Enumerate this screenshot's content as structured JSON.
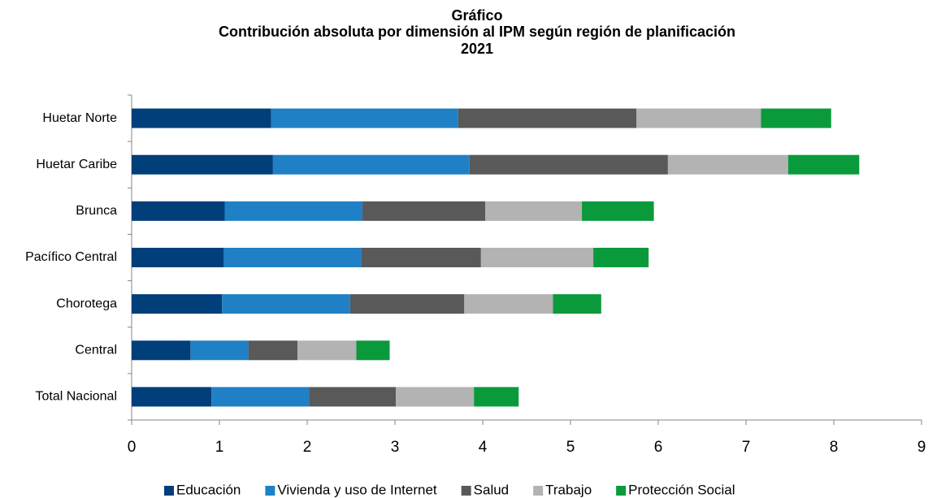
{
  "chart_data": {
    "type": "stacked_barh",
    "title_lines": [
      "Gráfico",
      "Contribución absoluta por dimensión al IPM según región de planificación",
      "2021"
    ],
    "categories": [
      "Huetar Norte",
      "Huetar Caribe",
      "Brunca",
      "Pacífico Central",
      "Chorotega",
      "Central",
      "Total Nacional"
    ],
    "series": [
      {
        "name": "Educación",
        "color": "#003f7a",
        "values": [
          1.59,
          1.61,
          1.06,
          1.05,
          1.03,
          0.67,
          0.91
        ]
      },
      {
        "name": "Vivienda y uso de Internet",
        "color": "#2080c6",
        "values": [
          2.13,
          2.24,
          1.57,
          1.57,
          1.46,
          0.66,
          1.11
        ]
      },
      {
        "name": "Salud",
        "color": "#595959",
        "values": [
          2.03,
          2.26,
          1.4,
          1.36,
          1.3,
          0.56,
          0.99
        ]
      },
      {
        "name": "Trabajo",
        "color": "#b3b3b3",
        "values": [
          1.42,
          1.37,
          1.1,
          1.28,
          1.01,
          0.67,
          0.89
        ]
      },
      {
        "name": "Protección Social",
        "color": "#0a9a3c",
        "values": [
          0.8,
          0.81,
          0.82,
          0.63,
          0.55,
          0.38,
          0.51
        ]
      }
    ],
    "xlim": [
      0,
      9
    ],
    "xticks": [
      0,
      1,
      2,
      3,
      4,
      5,
      6,
      7,
      8,
      9
    ],
    "grid": false,
    "legend": "bottom"
  }
}
